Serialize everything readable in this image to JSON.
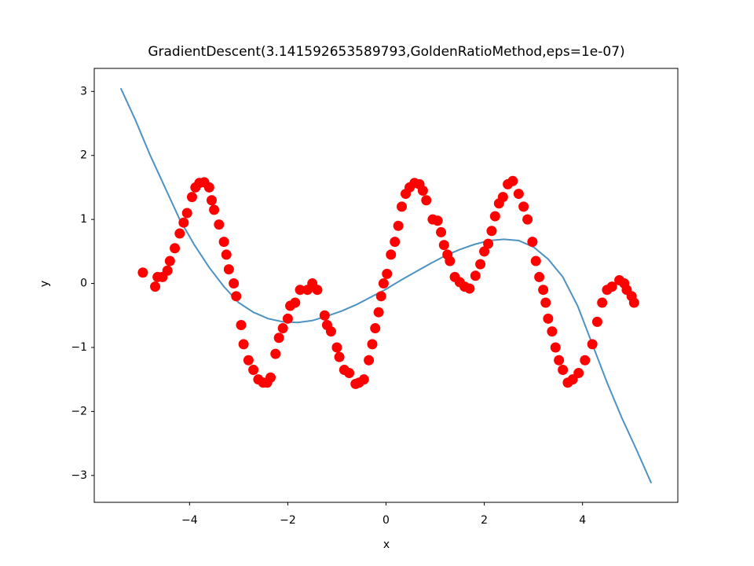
{
  "chart_data": {
    "type": "scatter",
    "title": "GradientDescent(3.141592653589793,GoldenRatioMethod,eps=1e-07)",
    "x_label": "x",
    "y_label": "y",
    "xlim": [
      -5.94,
      5.94
    ],
    "ylim": [
      -3.42,
      3.36
    ],
    "xticks": [
      {
        "value": -4,
        "label": "−4"
      },
      {
        "value": -2,
        "label": "−2"
      },
      0,
      2,
      4
    ],
    "yticks": [
      {
        "value": -3,
        "label": "−3"
      },
      {
        "value": -2,
        "label": "−2"
      },
      {
        "value": -1,
        "label": "−1"
      },
      0,
      1,
      2,
      3
    ],
    "series": [
      {
        "type": "line",
        "color": "#1f77b4",
        "x": [
          -5.4,
          -5.1,
          -4.8,
          -4.5,
          -4.2,
          -3.9,
          -3.6,
          -3.3,
          -3.0,
          -2.7,
          -2.4,
          -2.1,
          -1.8,
          -1.5,
          -1.2,
          -0.9,
          -0.6,
          -0.3,
          0,
          0.3,
          0.6,
          0.9,
          1.2,
          1.5,
          1.8,
          2.1,
          2.4,
          2.7,
          3.0,
          3.3,
          3.6,
          3.9,
          4.2,
          4.5,
          4.8,
          5.1,
          5.4
        ],
        "values": [
          3.05,
          2.55,
          2.0,
          1.5,
          1.0,
          0.6,
          0.25,
          -0.05,
          -0.3,
          -0.45,
          -0.55,
          -0.6,
          -0.61,
          -0.58,
          -0.51,
          -0.43,
          -0.33,
          -0.21,
          -0.09,
          0.05,
          0.18,
          0.31,
          0.43,
          0.53,
          0.61,
          0.67,
          0.69,
          0.67,
          0.57,
          0.38,
          0.1,
          -0.35,
          -0.95,
          -1.55,
          -2.1,
          -2.6,
          -3.12
        ]
      },
      {
        "type": "scatter",
        "color": "#ff0000",
        "x": [
          -4.95,
          -4.7,
          -4.65,
          -4.55,
          -4.45,
          -4.4,
          -4.3,
          -4.2,
          -4.12,
          -4.05,
          -3.95,
          -3.88,
          -3.8,
          -3.7,
          -3.6,
          -3.55,
          -3.5,
          -3.4,
          -3.3,
          -3.25,
          -3.2,
          -3.1,
          -3.05,
          -2.95,
          -2.9,
          -2.8,
          -2.7,
          -2.6,
          -2.5,
          -2.42,
          -2.35,
          -2.25,
          -2.18,
          -2.1,
          -2.0,
          -1.95,
          -1.85,
          -1.75,
          -1.6,
          -1.5,
          -1.4,
          -1.25,
          -1.2,
          -1.12,
          -1.0,
          -0.95,
          -0.85,
          -0.75,
          -0.62,
          -0.55,
          -0.45,
          -0.35,
          -0.28,
          -0.22,
          -0.15,
          -0.1,
          -0.05,
          0.02,
          0.1,
          0.18,
          0.25,
          0.32,
          0.4,
          0.48,
          0.58,
          0.68,
          0.75,
          0.82,
          0.95,
          1.05,
          1.12,
          1.18,
          1.25,
          1.3,
          1.4,
          1.5,
          1.6,
          1.7,
          1.82,
          1.92,
          2.0,
          2.08,
          2.15,
          2.22,
          2.3,
          2.38,
          2.48,
          2.58,
          2.7,
          2.8,
          2.88,
          2.98,
          3.05,
          3.12,
          3.2,
          3.25,
          3.3,
          3.38,
          3.45,
          3.52,
          3.6,
          3.7,
          3.8,
          3.92,
          4.05,
          4.2,
          4.3,
          4.4,
          4.5,
          4.6,
          4.75,
          4.85,
          4.9,
          5.0,
          5.05
        ],
        "values": [
          0.17,
          -0.05,
          0.1,
          0.1,
          0.2,
          0.35,
          0.55,
          0.78,
          0.95,
          1.1,
          1.35,
          1.5,
          1.57,
          1.58,
          1.5,
          1.3,
          1.15,
          0.92,
          0.65,
          0.45,
          0.22,
          0.0,
          -0.2,
          -0.65,
          -0.95,
          -1.2,
          -1.35,
          -1.5,
          -1.55,
          -1.55,
          -1.47,
          -1.1,
          -0.85,
          -0.7,
          -0.55,
          -0.35,
          -0.3,
          -0.1,
          -0.1,
          0.0,
          -0.1,
          -0.5,
          -0.65,
          -0.75,
          -1.0,
          -1.15,
          -1.35,
          -1.4,
          -1.57,
          -1.55,
          -1.5,
          -1.2,
          -0.95,
          -0.7,
          -0.45,
          -0.2,
          0.0,
          0.15,
          0.45,
          0.65,
          0.9,
          1.2,
          1.4,
          1.5,
          1.57,
          1.55,
          1.45,
          1.3,
          1.0,
          0.98,
          0.8,
          0.6,
          0.45,
          0.35,
          0.1,
          0.02,
          -0.05,
          -0.08,
          0.12,
          0.3,
          0.5,
          0.62,
          0.82,
          1.05,
          1.25,
          1.35,
          1.55,
          1.6,
          1.4,
          1.2,
          1.0,
          0.65,
          0.35,
          0.1,
          -0.1,
          -0.3,
          -0.55,
          -0.75,
          -1.0,
          -1.2,
          -1.35,
          -1.55,
          -1.5,
          -1.4,
          -1.2,
          -0.95,
          -0.6,
          -0.3,
          -0.1,
          -0.05,
          0.05,
          0.0,
          -0.1,
          -0.2,
          -0.3
        ]
      }
    ]
  }
}
